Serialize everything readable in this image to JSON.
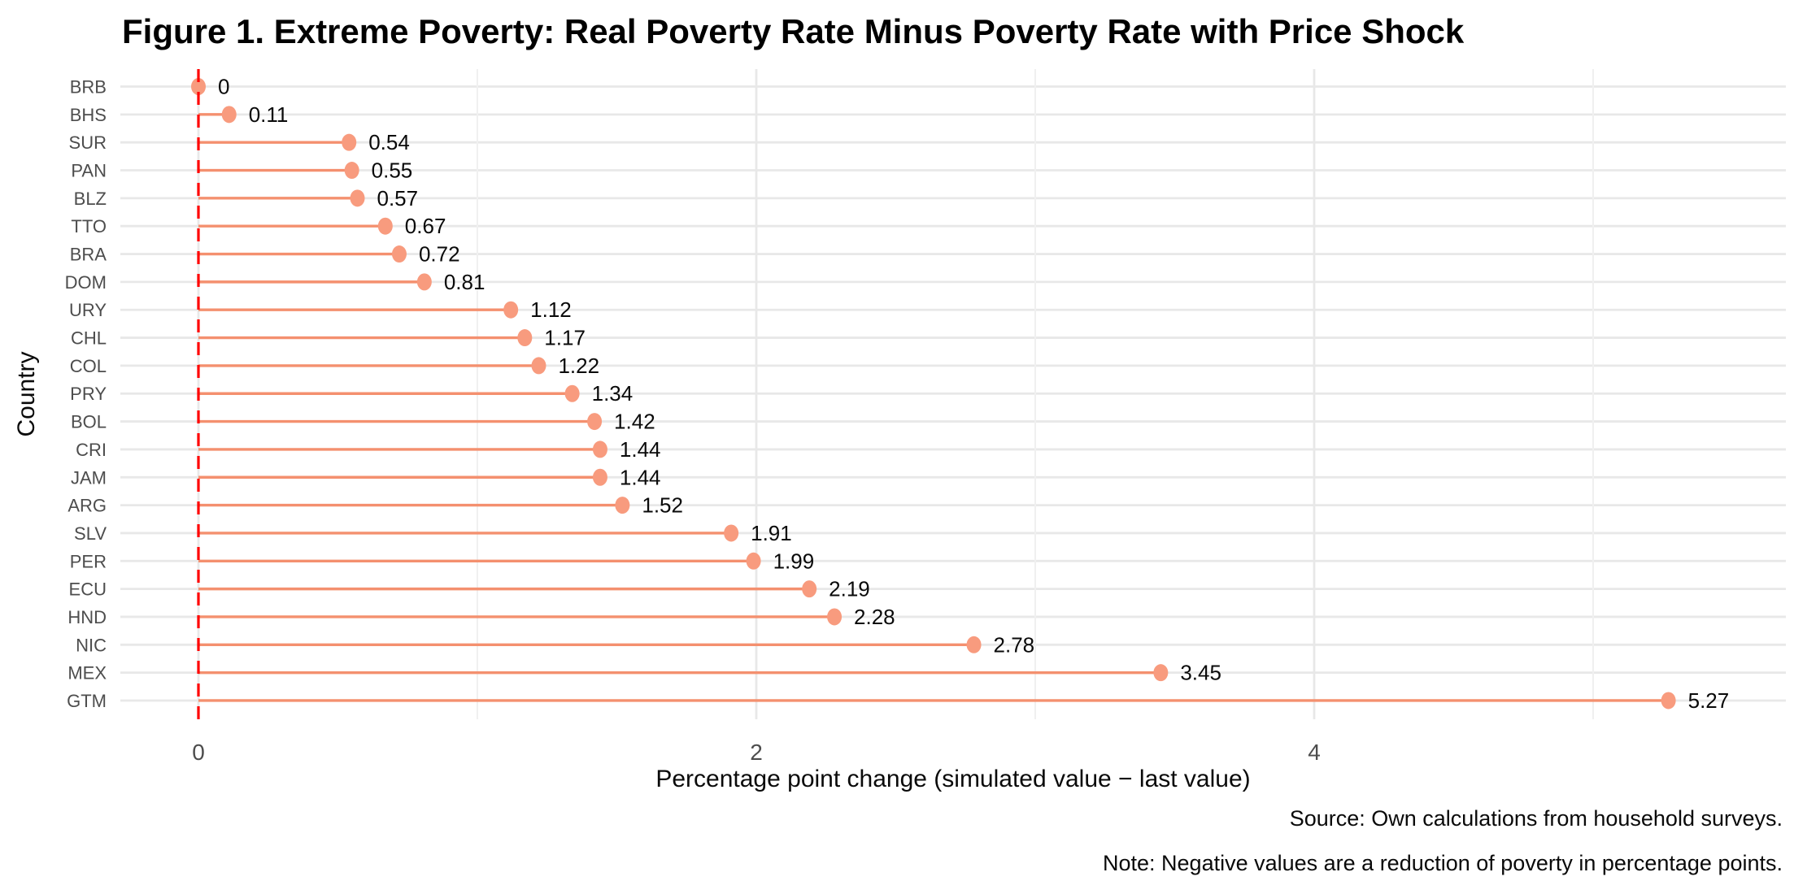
{
  "figure": {
    "title": "Figure 1. Extreme Poverty: Real Poverty Rate Minus Poverty Rate with Price Shock",
    "source_caption": "Source: Own calculations from household surveys.",
    "note_caption": "Note: Negative values are a reduction of poverty in percentage points."
  },
  "chart_data": {
    "type": "bar",
    "variant": "horizontal-lollipop",
    "title": "Figure 1. Extreme Poverty: Real Poverty Rate Minus Poverty Rate with Price Shock",
    "xlabel": "Percentage point change (simulated value − last value)",
    "ylabel": "Country",
    "categories": [
      "BRB",
      "BHS",
      "SUR",
      "PAN",
      "BLZ",
      "TTO",
      "BRA",
      "DOM",
      "URY",
      "CHL",
      "COL",
      "PRY",
      "BOL",
      "CRI",
      "JAM",
      "ARG",
      "SLV",
      "PER",
      "ECU",
      "HND",
      "NIC",
      "MEX",
      "GTM"
    ],
    "values": [
      0,
      0.11,
      0.54,
      0.55,
      0.57,
      0.67,
      0.72,
      0.81,
      1.12,
      1.17,
      1.22,
      1.34,
      1.42,
      1.44,
      1.44,
      1.52,
      1.91,
      1.99,
      2.19,
      2.28,
      2.78,
      3.45,
      5.27
    ],
    "value_labels": [
      "0",
      "0.11",
      "0.54",
      "0.55",
      "0.57",
      "0.67",
      "0.72",
      "0.81",
      "1.12",
      "1.17",
      "1.22",
      "1.34",
      "1.42",
      "1.44",
      "1.44",
      "1.52",
      "1.91",
      "1.99",
      "2.19",
      "2.28",
      "2.78",
      "3.45",
      "5.27"
    ],
    "xlim": [
      -0.3,
      5.7
    ],
    "x_major_ticks": [
      {
        "value": 0,
        "label": "0"
      },
      {
        "value": 2,
        "label": "2"
      },
      {
        "value": 4,
        "label": "4"
      }
    ],
    "x_minor_gridlines": [
      1,
      3,
      5
    ],
    "grid": "on",
    "legend": "none",
    "reference_line": {
      "x": 0,
      "style": "dashed",
      "color": "#FF0000"
    },
    "colors": {
      "stem": "#F4906F",
      "point": "#F89B7E",
      "grid_major": "#E8E8E8",
      "grid_minor": "#F0F0F0",
      "axis_text": "#4D4D4D",
      "text": "#000000",
      "reference": "#FF0000",
      "background": "#FFFFFF"
    }
  }
}
